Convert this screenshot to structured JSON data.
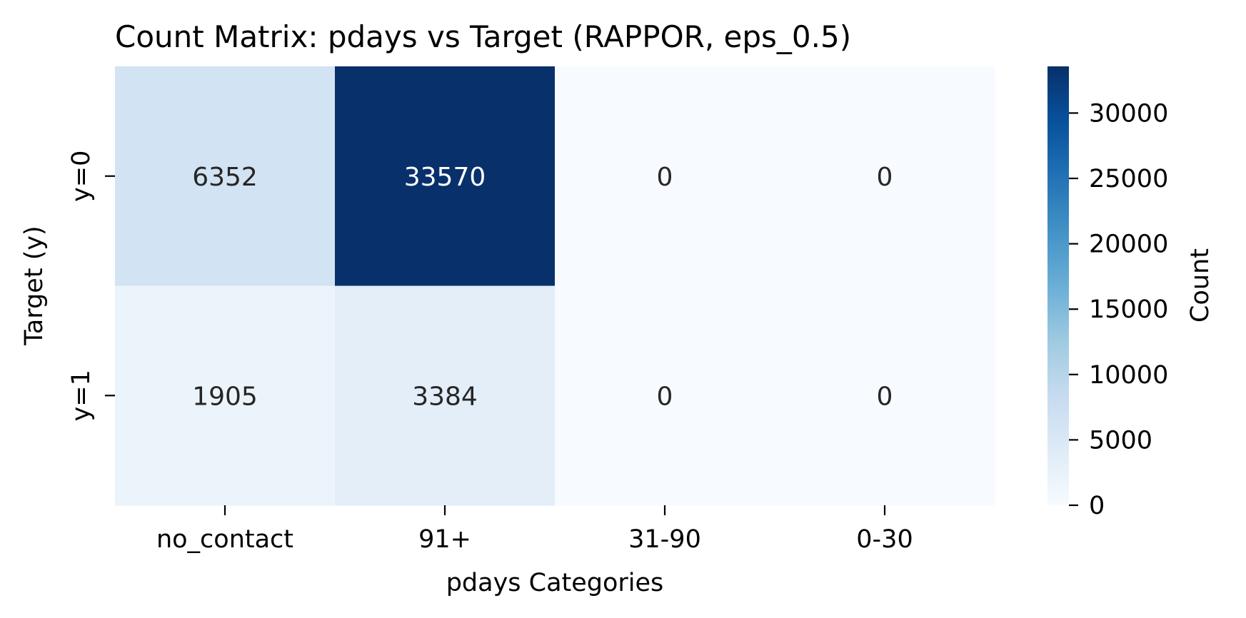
{
  "chart_data": {
    "type": "heatmap",
    "title": "Count Matrix: pdays vs Target (RAPPOR, eps_0.5)",
    "xlabel": "pdays Categories",
    "ylabel": "Target (y)",
    "x_categories": [
      "no_contact",
      "91+",
      "31-90",
      "0-30"
    ],
    "y_categories": [
      "y=0",
      "y=1"
    ],
    "values": [
      [
        6352,
        33570,
        0,
        0
      ],
      [
        1905,
        3384,
        0,
        0
      ]
    ],
    "colorbar": {
      "label": "Count",
      "range": [
        0,
        33570
      ],
      "ticks": [
        0,
        5000,
        10000,
        15000,
        20000,
        25000,
        30000
      ],
      "colormap": "Blues"
    },
    "annotations": true,
    "colors": {
      "text_dark": "#262626",
      "text_light": "#ffffff"
    }
  }
}
